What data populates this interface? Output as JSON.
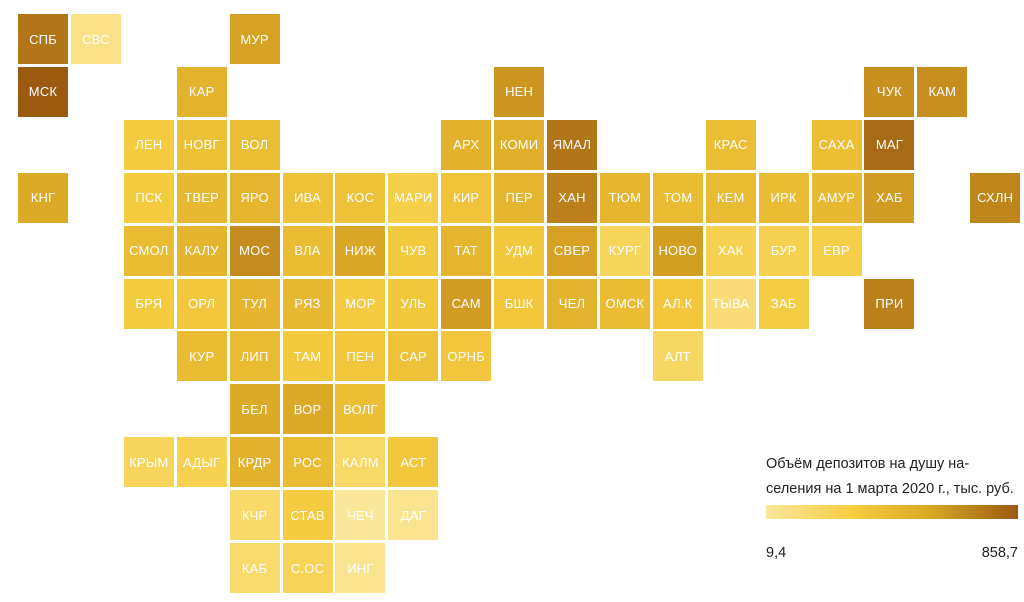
{
  "chart_data": {
    "type": "heatmap",
    "title": "",
    "value_range": [
      9.4,
      858.7
    ],
    "color_scale": [
      "#fbe79a",
      "#f5cc40",
      "#dba826",
      "#9c5a10"
    ],
    "regions": [
      {
        "label": "СПБ",
        "col": 0,
        "row": 0,
        "value": 760
      },
      {
        "label": "СВС",
        "col": 1,
        "row": 0,
        "value": 70
      },
      {
        "label": "МУР",
        "col": 4,
        "row": 0,
        "value": 600
      },
      {
        "label": "МСК",
        "col": 0,
        "row": 1,
        "value": 858.7
      },
      {
        "label": "КАР",
        "col": 3,
        "row": 1,
        "value": 490
      },
      {
        "label": "НЕН",
        "col": 9,
        "row": 1,
        "value": 640
      },
      {
        "label": "ЧУК",
        "col": 16,
        "row": 1,
        "value": 660
      },
      {
        "label": "КАМ",
        "col": 17,
        "row": 1,
        "value": 670
      },
      {
        "label": "ЛЕН",
        "col": 2,
        "row": 2,
        "value": 290
      },
      {
        "label": "НОВГ",
        "col": 3,
        "row": 2,
        "value": 390
      },
      {
        "label": "ВОЛ",
        "col": 4,
        "row": 2,
        "value": 410
      },
      {
        "label": "АРХ",
        "col": 8,
        "row": 2,
        "value": 500
      },
      {
        "label": "КОМИ",
        "col": 9,
        "row": 2,
        "value": 520
      },
      {
        "label": "ЯМАЛ",
        "col": 10,
        "row": 2,
        "value": 760
      },
      {
        "label": "КРАС",
        "col": 13,
        "row": 2,
        "value": 410
      },
      {
        "label": "САХА",
        "col": 15,
        "row": 2,
        "value": 400
      },
      {
        "label": "МАГ",
        "col": 16,
        "row": 2,
        "value": 800
      },
      {
        "label": "КНГ",
        "col": 0,
        "row": 3,
        "value": 560
      },
      {
        "label": "ПСК",
        "col": 2,
        "row": 3,
        "value": 300
      },
      {
        "label": "ТВЕР",
        "col": 3,
        "row": 3,
        "value": 440
      },
      {
        "label": "ЯРО",
        "col": 4,
        "row": 3,
        "value": 470
      },
      {
        "label": "ИВА",
        "col": 5,
        "row": 3,
        "value": 380
      },
      {
        "label": "КОС",
        "col": 6,
        "row": 3,
        "value": 380
      },
      {
        "label": "МАРИ",
        "col": 7,
        "row": 3,
        "value": 260
      },
      {
        "label": "КИР",
        "col": 8,
        "row": 3,
        "value": 360
      },
      {
        "label": "ПЕР",
        "col": 9,
        "row": 3,
        "value": 470
      },
      {
        "label": "ХАН",
        "col": 10,
        "row": 3,
        "value": 720
      },
      {
        "label": "ТЮМ",
        "col": 11,
        "row": 3,
        "value": 470
      },
      {
        "label": "ТОМ",
        "col": 12,
        "row": 3,
        "value": 420
      },
      {
        "label": "КЕМ",
        "col": 13,
        "row": 3,
        "value": 430
      },
      {
        "label": "ИРК",
        "col": 14,
        "row": 3,
        "value": 420
      },
      {
        "label": "АМУР",
        "col": 15,
        "row": 3,
        "value": 450
      },
      {
        "label": "ХАБ",
        "col": 16,
        "row": 3,
        "value": 620
      },
      {
        "label": "СХЛН",
        "col": 18,
        "row": 3,
        "value": 700
      },
      {
        "label": "СМОЛ",
        "col": 2,
        "row": 4,
        "value": 420
      },
      {
        "label": "КАЛУ",
        "col": 3,
        "row": 4,
        "value": 480
      },
      {
        "label": "МОС",
        "col": 4,
        "row": 4,
        "value": 680
      },
      {
        "label": "ВЛА",
        "col": 5,
        "row": 4,
        "value": 420
      },
      {
        "label": "НИЖ",
        "col": 6,
        "row": 4,
        "value": 580
      },
      {
        "label": "ЧУВ",
        "col": 7,
        "row": 4,
        "value": 310
      },
      {
        "label": "ТАТ",
        "col": 8,
        "row": 4,
        "value": 470
      },
      {
        "label": "УДМ",
        "col": 9,
        "row": 4,
        "value": 320
      },
      {
        "label": "СВЕР",
        "col": 10,
        "row": 4,
        "value": 600
      },
      {
        "label": "КУРГ",
        "col": 11,
        "row": 4,
        "value": 210
      },
      {
        "label": "НОВО",
        "col": 12,
        "row": 4,
        "value": 610
      },
      {
        "label": "ХАК",
        "col": 13,
        "row": 4,
        "value": 240
      },
      {
        "label": "БУР",
        "col": 14,
        "row": 4,
        "value": 240
      },
      {
        "label": "ЕВР",
        "col": 15,
        "row": 4,
        "value": 260
      },
      {
        "label": "БРЯ",
        "col": 2,
        "row": 5,
        "value": 300
      },
      {
        "label": "ОРЛ",
        "col": 3,
        "row": 5,
        "value": 330
      },
      {
        "label": "ТУЛ",
        "col": 4,
        "row": 5,
        "value": 480
      },
      {
        "label": "РЯЗ",
        "col": 5,
        "row": 5,
        "value": 450
      },
      {
        "label": "МОР",
        "col": 6,
        "row": 5,
        "value": 290
      },
      {
        "label": "УЛЬ",
        "col": 7,
        "row": 5,
        "value": 320
      },
      {
        "label": "САМ",
        "col": 8,
        "row": 5,
        "value": 620
      },
      {
        "label": "БШК",
        "col": 9,
        "row": 5,
        "value": 330
      },
      {
        "label": "ЧЕЛ",
        "col": 10,
        "row": 5,
        "value": 480
      },
      {
        "label": "ОМСК",
        "col": 11,
        "row": 5,
        "value": 420
      },
      {
        "label": "АЛ.К",
        "col": 12,
        "row": 5,
        "value": 330
      },
      {
        "label": "ТЫВА",
        "col": 13,
        "row": 5,
        "value": 120
      },
      {
        "label": "ЗАБ",
        "col": 14,
        "row": 5,
        "value": 280
      },
      {
        "label": "ПРИ",
        "col": 16,
        "row": 5,
        "value": 720
      },
      {
        "label": "КУР",
        "col": 3,
        "row": 6,
        "value": 420
      },
      {
        "label": "ЛИП",
        "col": 4,
        "row": 6,
        "value": 430
      },
      {
        "label": "ТАМ",
        "col": 5,
        "row": 6,
        "value": 310
      },
      {
        "label": "ПЕН",
        "col": 6,
        "row": 6,
        "value": 340
      },
      {
        "label": "САР",
        "col": 7,
        "row": 6,
        "value": 380
      },
      {
        "label": "ОРНБ",
        "col": 8,
        "row": 6,
        "value": 340
      },
      {
        "label": "АЛТ",
        "col": 12,
        "row": 6,
        "value": 180
      },
      {
        "label": "БЕЛ",
        "col": 4,
        "row": 7,
        "value": 560
      },
      {
        "label": "ВОР",
        "col": 5,
        "row": 7,
        "value": 560
      },
      {
        "label": "ВОЛГ",
        "col": 6,
        "row": 7,
        "value": 400
      },
      {
        "label": "КРЫМ",
        "col": 2,
        "row": 8,
        "value": 200
      },
      {
        "label": "АДЫГ",
        "col": 3,
        "row": 8,
        "value": 240
      },
      {
        "label": "КРДР",
        "col": 4,
        "row": 8,
        "value": 500
      },
      {
        "label": "РОС",
        "col": 5,
        "row": 8,
        "value": 420
      },
      {
        "label": "КАЛМ",
        "col": 6,
        "row": 8,
        "value": 170
      },
      {
        "label": "АСТ",
        "col": 7,
        "row": 8,
        "value": 330
      },
      {
        "label": "КЧР",
        "col": 4,
        "row": 9,
        "value": 160
      },
      {
        "label": "СТАВ",
        "col": 5,
        "row": 9,
        "value": 290
      },
      {
        "label": "ЧЕЧ",
        "col": 6,
        "row": 9,
        "value": 9.4
      },
      {
        "label": "ДАГ",
        "col": 7,
        "row": 9,
        "value": 40
      },
      {
        "label": "КАБ",
        "col": 4,
        "row": 10,
        "value": 150
      },
      {
        "label": "С.ОС",
        "col": 5,
        "row": 10,
        "value": 220
      },
      {
        "label": "ИНГ",
        "col": 6,
        "row": 10,
        "value": 40
      }
    ]
  },
  "legend": {
    "title": "Объём депозитов на душу на-селения на 1 марта 2020 г., тыс. руб.",
    "min_label": "9,4",
    "max_label": "858,7"
  }
}
